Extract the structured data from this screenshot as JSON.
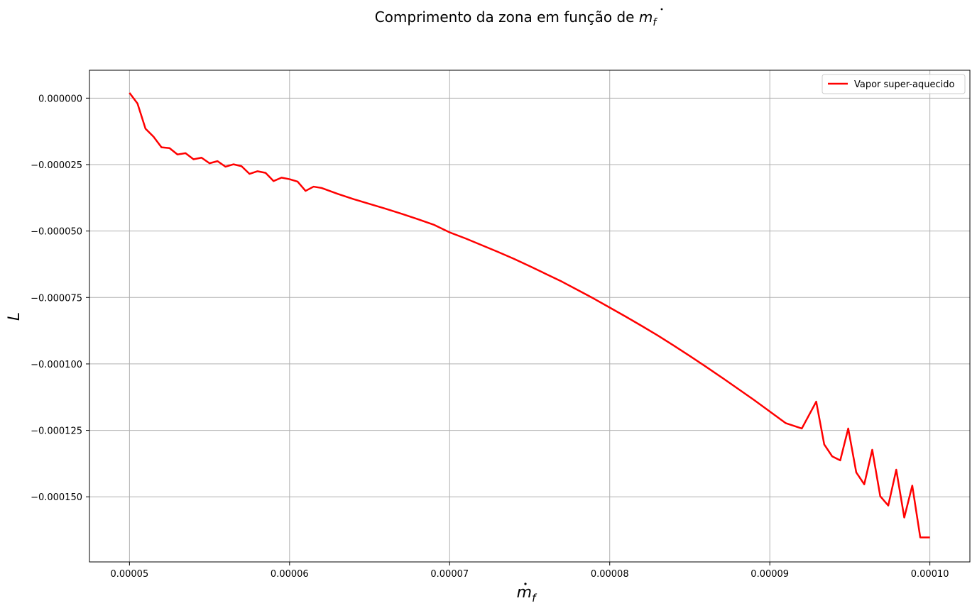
{
  "chart_data": {
    "type": "line",
    "title_text": "Comprimento da zona em função de ",
    "title_math_base": "m",
    "title_math_sub": "f",
    "xlabel_base": "m",
    "xlabel_sub": "f",
    "ylabel": "L",
    "xlim": [
      4.75e-05,
      0.0001025
    ],
    "ylim": [
      -0.0001745,
      1.05e-05
    ],
    "x_ticks": [
      5e-05,
      6e-05,
      7e-05,
      8e-05,
      9e-05,
      0.0001
    ],
    "x_tick_labels": [
      "0.00005",
      "0.00006",
      "0.00007",
      "0.00008",
      "0.00009",
      "0.00010"
    ],
    "y_ticks": [
      0,
      -2.5e-05,
      -5e-05,
      -7.5e-05,
      -0.0001,
      -0.000125,
      -0.00015
    ],
    "y_tick_labels": [
      "0.000000",
      "−0.000025",
      "−0.000050",
      "−0.000075",
      "−0.000100",
      "−0.000125",
      "−0.000150"
    ],
    "grid": true,
    "legend_position": "upper right",
    "series": [
      {
        "name": "Vapor super-aquecido",
        "color": "#ff0000",
        "x": [
          5e-05,
          5.05e-05,
          5.1e-05,
          5.15e-05,
          5.2e-05,
          5.25e-05,
          5.3e-05,
          5.35e-05,
          5.4e-05,
          5.45e-05,
          5.5e-05,
          5.55e-05,
          5.6e-05,
          5.65e-05,
          5.7e-05,
          5.75e-05,
          5.8e-05,
          5.85e-05,
          5.9e-05,
          5.95e-05,
          6e-05,
          6.05e-05,
          6.1e-05,
          6.15e-05,
          6.2e-05,
          6.3e-05,
          6.4e-05,
          6.5e-05,
          6.6e-05,
          6.7e-05,
          6.8e-05,
          6.9e-05,
          7e-05,
          7.1e-05,
          7.2e-05,
          7.3e-05,
          7.4e-05,
          7.5e-05,
          7.6e-05,
          7.7e-05,
          7.8e-05,
          7.9e-05,
          8e-05,
          8.1e-05,
          8.2e-05,
          8.3e-05,
          8.4e-05,
          8.5e-05,
          8.6e-05,
          8.7e-05,
          8.8e-05,
          8.9e-05,
          9e-05,
          9.1e-05,
          9.2e-05,
          9.29e-05,
          9.34e-05,
          9.39e-05,
          9.44e-05,
          9.49e-05,
          9.54e-05,
          9.59e-05,
          9.64e-05,
          9.69e-05,
          9.74e-05,
          9.79e-05,
          9.84e-05,
          9.89e-05,
          9.94e-05,
          0.0001
        ],
        "y": [
          2e-06,
          -2e-06,
          -1.15e-05,
          -1.45e-05,
          -1.85e-05,
          -1.88e-05,
          -2.12e-05,
          -2.07e-05,
          -2.3e-05,
          -2.24e-05,
          -2.45e-05,
          -2.37e-05,
          -2.58e-05,
          -2.49e-05,
          -2.56e-05,
          -2.85e-05,
          -2.75e-05,
          -2.81e-05,
          -3.12e-05,
          -2.99e-05,
          -3.05e-05,
          -3.14e-05,
          -3.49e-05,
          -3.33e-05,
          -3.38e-05,
          -3.6e-05,
          -3.8e-05,
          -3.98e-05,
          -4.16e-05,
          -4.35e-05,
          -4.55e-05,
          -4.76e-05,
          -5.05e-05,
          -5.28e-05,
          -5.53e-05,
          -5.78e-05,
          -6.04e-05,
          -6.32e-05,
          -6.61e-05,
          -6.9e-05,
          -7.22e-05,
          -7.54e-05,
          -7.88e-05,
          -8.22e-05,
          -8.57e-05,
          -8.93e-05,
          -9.31e-05,
          -9.7e-05,
          -0.000101,
          -0.0001051,
          -0.0001093,
          -0.0001135,
          -0.0001179,
          -0.0001223,
          -0.0001243,
          -0.0001142,
          -0.0001303,
          -0.0001348,
          -0.0001363,
          -0.0001243,
          -0.0001408,
          -0.0001453,
          -0.0001323,
          -0.0001498,
          -0.0001533,
          -0.0001398,
          -0.0001578,
          -0.0001458,
          -0.0001653,
          -0.0001653
        ]
      }
    ]
  }
}
